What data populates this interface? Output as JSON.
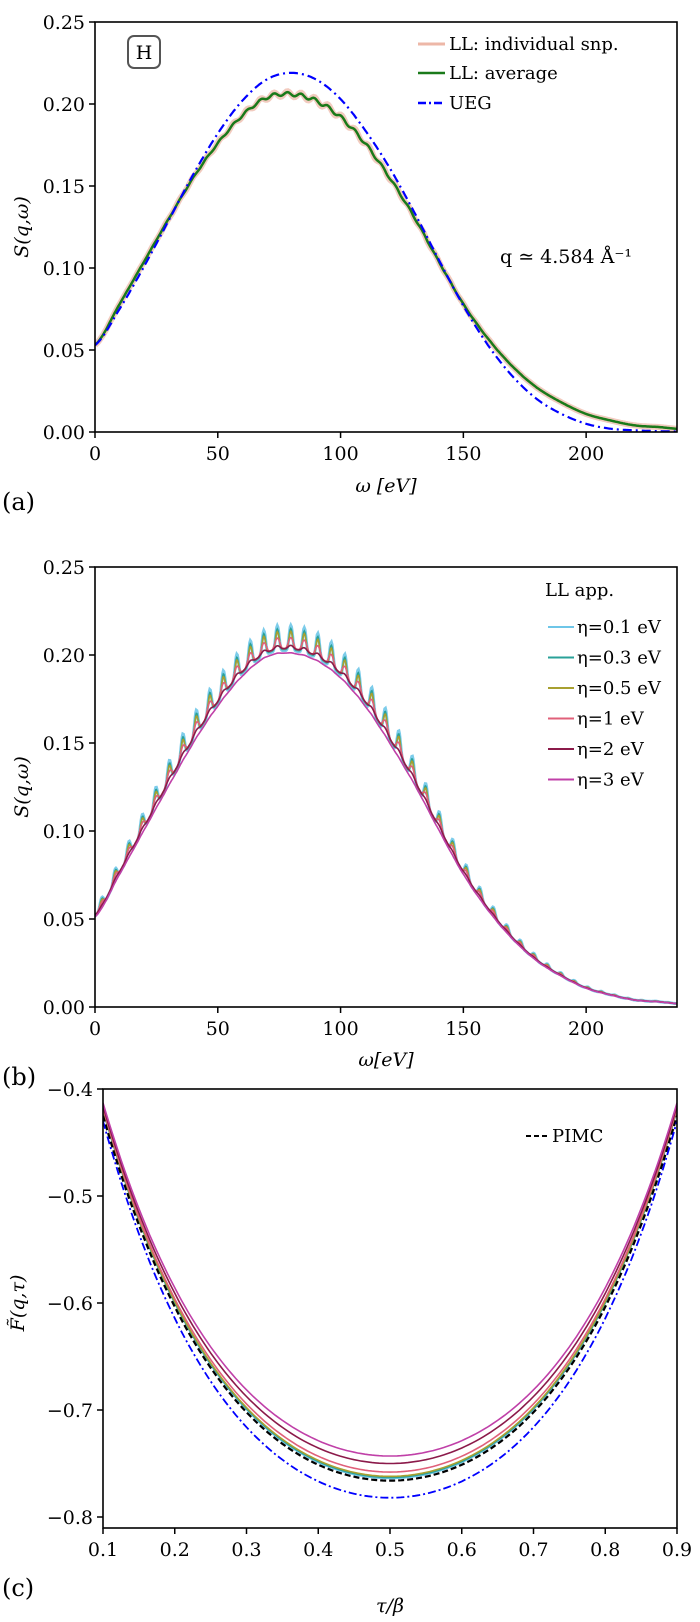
{
  "figure": {
    "panels": [
      "(a)",
      "(b)",
      "(c)"
    ]
  },
  "chart_data": [
    {
      "id": "a",
      "type": "line",
      "panel_label": "(a)",
      "title": "",
      "xlabel": "ω [eV]",
      "ylabel": "S(q,ω)",
      "xlim": [
        0,
        237
      ],
      "ylim": [
        0,
        0.25
      ],
      "xticks": [
        0,
        50,
        100,
        150,
        200
      ],
      "xtick_labels": [
        "0",
        "50",
        "100",
        "150",
        "200"
      ],
      "yticks": [
        0,
        0.05,
        0.1,
        0.15,
        0.2,
        0.25
      ],
      "ytick_labels": [
        "0.00",
        "0.05",
        "0.10",
        "0.15",
        "0.20",
        "0.25"
      ],
      "grid": false,
      "legend_position": "top-right",
      "badge": "H",
      "annotation": "q ≃ 4.584 Å⁻¹",
      "series": [
        {
          "name": "LL: individual snp.",
          "color": "#e8a08a",
          "style": "solid-thick-translucent",
          "x": [
            0,
            10,
            20,
            30,
            40,
            50,
            60,
            70,
            80,
            90,
            100,
            110,
            120,
            130,
            140,
            150,
            160,
            170,
            180,
            190,
            200,
            210,
            220,
            230,
            237
          ],
          "y": [
            0.053,
            0.078,
            0.104,
            0.13,
            0.155,
            0.176,
            0.193,
            0.204,
            0.206,
            0.202,
            0.192,
            0.176,
            0.155,
            0.131,
            0.104,
            0.078,
            0.057,
            0.04,
            0.027,
            0.018,
            0.011,
            0.007,
            0.004,
            0.003,
            0.002
          ]
        },
        {
          "name": "LL: average",
          "color": "#1a7a1a",
          "style": "solid",
          "x": [
            0,
            10,
            20,
            30,
            40,
            50,
            60,
            70,
            80,
            90,
            100,
            110,
            120,
            130,
            140,
            150,
            160,
            170,
            180,
            190,
            200,
            210,
            220,
            230,
            237
          ],
          "y": [
            0.053,
            0.078,
            0.104,
            0.13,
            0.155,
            0.176,
            0.193,
            0.204,
            0.206,
            0.202,
            0.192,
            0.176,
            0.155,
            0.131,
            0.104,
            0.078,
            0.057,
            0.04,
            0.027,
            0.018,
            0.011,
            0.007,
            0.004,
            0.003,
            0.002
          ]
        },
        {
          "name": "UEG",
          "color": "#0000ff",
          "style": "dash-dot",
          "x": [
            0,
            10,
            20,
            30,
            40,
            50,
            60,
            70,
            80,
            90,
            100,
            110,
            120,
            130,
            140,
            150,
            160,
            170,
            180,
            190,
            200,
            210,
            220,
            230,
            237
          ],
          "y": [
            0.053,
            0.075,
            0.101,
            0.129,
            0.157,
            0.182,
            0.202,
            0.215,
            0.219,
            0.215,
            0.203,
            0.184,
            0.161,
            0.134,
            0.105,
            0.077,
            0.053,
            0.034,
            0.02,
            0.011,
            0.005,
            0.002,
            0.001,
            0.0005,
            0.0003
          ]
        }
      ]
    },
    {
      "id": "b",
      "type": "line",
      "panel_label": "(b)",
      "title": "",
      "xlabel": "ω[eV]",
      "ylabel": "S(q,ω)",
      "xlim": [
        0,
        237
      ],
      "ylim": [
        0,
        0.25
      ],
      "xticks": [
        0,
        50,
        100,
        150,
        200
      ],
      "xtick_labels": [
        "0",
        "50",
        "100",
        "150",
        "200"
      ],
      "yticks": [
        0,
        0.05,
        0.1,
        0.15,
        0.2,
        0.25
      ],
      "ytick_labels": [
        "0.00",
        "0.05",
        "0.10",
        "0.15",
        "0.20",
        "0.25"
      ],
      "grid": false,
      "legend_title": "LL app.",
      "legend_position": "top-right",
      "oscillation_period_eV": 5.5,
      "base_curve": {
        "x": [
          0,
          10,
          20,
          30,
          40,
          50,
          60,
          70,
          80,
          90,
          100,
          110,
          120,
          130,
          140,
          150,
          160,
          170,
          180,
          190,
          200,
          210,
          220,
          230,
          237
        ],
        "y": [
          0.053,
          0.078,
          0.104,
          0.13,
          0.155,
          0.176,
          0.193,
          0.204,
          0.206,
          0.202,
          0.192,
          0.176,
          0.155,
          0.131,
          0.104,
          0.078,
          0.057,
          0.04,
          0.027,
          0.018,
          0.011,
          0.007,
          0.004,
          0.003,
          0.002
        ]
      },
      "series": [
        {
          "name": "η=0.1 eV",
          "color": "#6ec6e8",
          "oscillation_amplitude": 0.009,
          "offset": 0.0
        },
        {
          "name": "η=0.3 eV",
          "color": "#2aa198",
          "oscillation_amplitude": 0.0075,
          "offset": 0.0
        },
        {
          "name": "η=0.5 eV",
          "color": "#a8a030",
          "oscillation_amplitude": 0.0062,
          "offset": 0.0
        },
        {
          "name": "η=1 eV",
          "color": "#e0607a",
          "oscillation_amplitude": 0.004,
          "offset": -0.001
        },
        {
          "name": "η=2 eV",
          "color": "#8b1a4a",
          "oscillation_amplitude": 0.0012,
          "offset": -0.002
        },
        {
          "name": "η=3 eV",
          "color": "#c040a8",
          "oscillation_amplitude": 0.0002,
          "offset": -0.005
        }
      ]
    },
    {
      "id": "c",
      "type": "line",
      "panel_label": "(c)",
      "title": "",
      "xlabel": "τ/β",
      "ylabel": "F̃(q,τ)",
      "xlim": [
        0.1,
        0.9
      ],
      "ylim": [
        -0.81,
        -0.4
      ],
      "xticks": [
        0.1,
        0.2,
        0.3,
        0.4,
        0.5,
        0.6,
        0.7,
        0.8,
        0.9
      ],
      "xtick_labels": [
        "0.1",
        "0.2",
        "0.3",
        "0.4",
        "0.5",
        "0.6",
        "0.7",
        "0.8",
        "0.9"
      ],
      "yticks": [
        -0.8,
        -0.7,
        -0.6,
        -0.5,
        -0.4
      ],
      "ytick_labels": [
        "−0.8",
        "−0.7",
        "−0.6",
        "−0.5",
        "−0.4"
      ],
      "grid": false,
      "legend_position": "top-right",
      "series": [
        {
          "name": "PIMC",
          "color": "#000000",
          "style": "dashed",
          "legend": true,
          "edge_value": -0.425,
          "min_value": -0.766
        },
        {
          "name": "UEG",
          "color": "#0000ff",
          "style": "dash-dot",
          "legend": false,
          "edge_value": -0.43,
          "min_value": -0.782
        },
        {
          "name": "η=0.1 eV",
          "color": "#6ec6e8",
          "style": "solid",
          "legend": false,
          "edge_value": -0.42,
          "min_value": -0.764
        },
        {
          "name": "η=0.3 eV",
          "color": "#2aa198",
          "style": "solid",
          "legend": false,
          "edge_value": -0.42,
          "min_value": -0.763
        },
        {
          "name": "η=0.5 eV",
          "color": "#a8a030",
          "style": "solid",
          "legend": false,
          "edge_value": -0.419,
          "min_value": -0.762
        },
        {
          "name": "η=1 eV",
          "color": "#e0607a",
          "style": "solid",
          "legend": false,
          "edge_value": -0.418,
          "min_value": -0.758
        },
        {
          "name": "η=2 eV",
          "color": "#8b1a4a",
          "style": "solid",
          "legend": false,
          "edge_value": -0.416,
          "min_value": -0.75
        },
        {
          "name": "η=3 eV",
          "color": "#c040a8",
          "style": "solid",
          "legend": false,
          "edge_value": -0.413,
          "min_value": -0.743
        }
      ]
    }
  ]
}
